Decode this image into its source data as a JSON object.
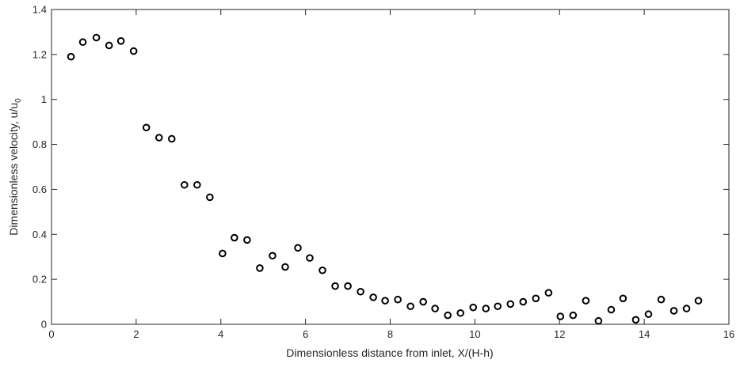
{
  "chart_data": {
    "type": "scatter",
    "title": "",
    "xlabel": "Dimensionless distance from inlet, X/(H-h)",
    "ylabel_main": "Dimensionless velocity, u/u",
    "ylabel_subscript": "0",
    "xlim": [
      0,
      16
    ],
    "ylim": [
      0,
      1.4
    ],
    "x_ticks": [
      0,
      2,
      4,
      6,
      8,
      10,
      12,
      14,
      16
    ],
    "x_tick_labels": [
      "0",
      "2",
      "4",
      "6",
      "8",
      "10",
      "12",
      "14",
      "16"
    ],
    "y_ticks": [
      0,
      0.2,
      0.4,
      0.6,
      0.8,
      1.0,
      1.2,
      1.4
    ],
    "y_tick_labels": [
      "0",
      "0.2",
      "0.4",
      "0.6",
      "0.8",
      "1",
      "1.2",
      "1.4"
    ],
    "grid": false,
    "marker": "open-circle",
    "marker_color": "#000000",
    "series": [
      {
        "x": [
          0.46,
          0.74,
          1.06,
          1.36,
          1.64,
          1.94,
          2.24,
          2.54,
          2.84,
          3.14,
          3.44,
          3.74,
          4.04,
          4.32,
          4.62,
          4.92,
          5.22,
          5.52,
          5.82,
          6.1,
          6.4,
          6.7,
          7.0,
          7.3,
          7.6,
          7.88,
          8.18,
          8.48,
          8.78,
          9.06,
          9.36,
          9.66,
          9.96,
          10.26,
          10.54,
          10.84,
          11.14,
          11.44,
          11.74,
          12.02,
          12.32,
          12.62,
          12.92,
          13.22,
          13.5,
          13.8,
          14.1,
          14.4,
          14.7,
          15.0,
          15.28
        ],
        "y": [
          1.19,
          1.255,
          1.275,
          1.24,
          1.26,
          1.215,
          0.875,
          0.83,
          0.825,
          0.62,
          0.62,
          0.565,
          0.315,
          0.385,
          0.375,
          0.25,
          0.305,
          0.255,
          0.34,
          0.295,
          0.24,
          0.17,
          0.17,
          0.145,
          0.12,
          0.105,
          0.11,
          0.08,
          0.1,
          0.07,
          0.04,
          0.05,
          0.075,
          0.07,
          0.08,
          0.09,
          0.1,
          0.115,
          0.14,
          0.035,
          0.04,
          0.105,
          0.015,
          0.065,
          0.115,
          0.02,
          0.045,
          0.11,
          0.06,
          0.07,
          0.105
        ]
      }
    ]
  }
}
